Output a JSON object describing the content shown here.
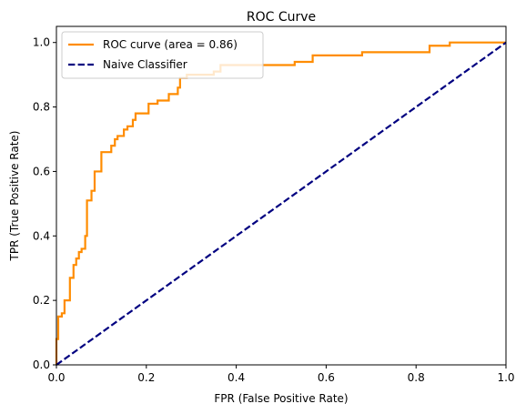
{
  "chart_data": {
    "type": "line",
    "title": "ROC Curve",
    "xlabel": "FPR (False Positive Rate)",
    "ylabel": "TPR (True Positive Rate)",
    "xlim": [
      0.0,
      1.0
    ],
    "ylim": [
      0.0,
      1.05
    ],
    "x_ticks": [
      "0.0",
      "0.2",
      "0.4",
      "0.6",
      "0.8",
      "1.0"
    ],
    "x_tick_values": [
      0.0,
      0.2,
      0.4,
      0.6,
      0.8,
      1.0
    ],
    "y_ticks": [
      "0.0",
      "0.2",
      "0.4",
      "0.6",
      "0.8",
      "1.0"
    ],
    "y_tick_values": [
      0.0,
      0.2,
      0.4,
      0.6,
      0.8,
      1.0
    ],
    "grid": false,
    "legend_position": "top-left",
    "series": [
      {
        "name": "ROC curve (area = 0.86)",
        "color": "#ff8c00",
        "style": "solid",
        "points": [
          [
            0.0,
            0.0
          ],
          [
            0.0,
            0.08
          ],
          [
            0.004,
            0.08
          ],
          [
            0.004,
            0.15
          ],
          [
            0.012,
            0.15
          ],
          [
            0.012,
            0.16
          ],
          [
            0.018,
            0.16
          ],
          [
            0.018,
            0.2
          ],
          [
            0.03,
            0.2
          ],
          [
            0.03,
            0.27
          ],
          [
            0.038,
            0.27
          ],
          [
            0.038,
            0.31
          ],
          [
            0.044,
            0.31
          ],
          [
            0.044,
            0.33
          ],
          [
            0.05,
            0.33
          ],
          [
            0.05,
            0.35
          ],
          [
            0.056,
            0.35
          ],
          [
            0.056,
            0.36
          ],
          [
            0.064,
            0.36
          ],
          [
            0.064,
            0.4
          ],
          [
            0.068,
            0.4
          ],
          [
            0.068,
            0.51
          ],
          [
            0.078,
            0.51
          ],
          [
            0.078,
            0.54
          ],
          [
            0.085,
            0.54
          ],
          [
            0.085,
            0.6
          ],
          [
            0.1,
            0.6
          ],
          [
            0.1,
            0.66
          ],
          [
            0.122,
            0.66
          ],
          [
            0.122,
            0.68
          ],
          [
            0.13,
            0.68
          ],
          [
            0.13,
            0.7
          ],
          [
            0.136,
            0.7
          ],
          [
            0.136,
            0.71
          ],
          [
            0.15,
            0.71
          ],
          [
            0.15,
            0.73
          ],
          [
            0.158,
            0.73
          ],
          [
            0.158,
            0.74
          ],
          [
            0.17,
            0.74
          ],
          [
            0.17,
            0.76
          ],
          [
            0.176,
            0.76
          ],
          [
            0.176,
            0.78
          ],
          [
            0.205,
            0.78
          ],
          [
            0.205,
            0.81
          ],
          [
            0.225,
            0.81
          ],
          [
            0.225,
            0.82
          ],
          [
            0.25,
            0.82
          ],
          [
            0.25,
            0.84
          ],
          [
            0.27,
            0.84
          ],
          [
            0.27,
            0.86
          ],
          [
            0.275,
            0.86
          ],
          [
            0.275,
            0.89
          ],
          [
            0.29,
            0.89
          ],
          [
            0.29,
            0.9
          ],
          [
            0.35,
            0.9
          ],
          [
            0.35,
            0.91
          ],
          [
            0.365,
            0.91
          ],
          [
            0.365,
            0.93
          ],
          [
            0.53,
            0.93
          ],
          [
            0.53,
            0.94
          ],
          [
            0.57,
            0.94
          ],
          [
            0.57,
            0.96
          ],
          [
            0.68,
            0.96
          ],
          [
            0.68,
            0.97
          ],
          [
            0.83,
            0.97
          ],
          [
            0.83,
            0.99
          ],
          [
            0.875,
            0.99
          ],
          [
            0.875,
            1.0
          ],
          [
            1.0,
            1.0
          ]
        ]
      },
      {
        "name": "Naive Classifier",
        "color": "#000080",
        "style": "dashed",
        "points": [
          [
            0.0,
            0.0
          ],
          [
            1.0,
            1.0
          ]
        ]
      }
    ]
  }
}
